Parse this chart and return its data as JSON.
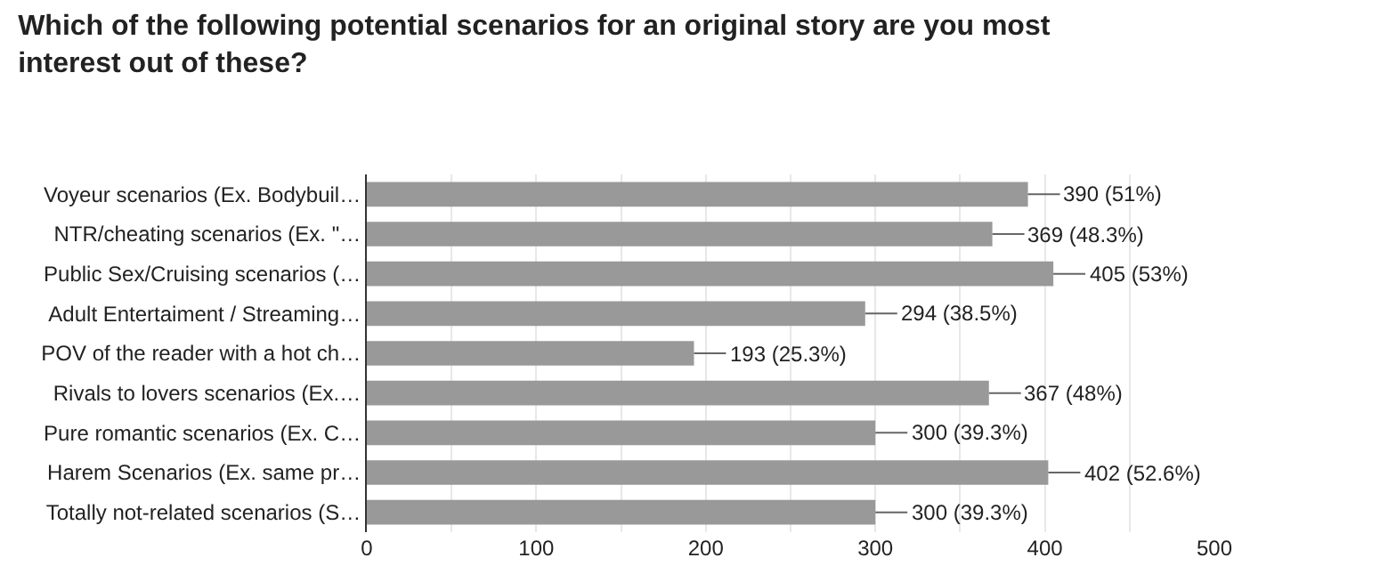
{
  "chart_data": {
    "type": "bar",
    "orientation": "horizontal",
    "title": "Which of the following potential scenarios for an original story are you most\ninterest out of these?",
    "categories": [
      "Voyeur scenarios (Ex. Bodybuil…",
      "NTR/cheating scenarios (Ex. \"…",
      "Public Sex/Cruising scenarios (…",
      "Adult Entertaiment / Streaming…",
      "POV of the reader with a hot ch…",
      "Rivals to lovers scenarios (Ex.…",
      "Pure romantic scenarios (Ex. C…",
      "Harem Scenarios (Ex. same pr…",
      "Totally not-related scenarios (S…"
    ],
    "values": [
      390,
      369,
      405,
      294,
      193,
      367,
      300,
      402,
      300
    ],
    "value_labels": [
      "390 (51%)",
      "369 (48.3%)",
      "405 (53%)",
      "294 (38.5%)",
      "193 (25.3%)",
      "367 (48%)",
      "300 (39.3%)",
      "402 (52.6%)",
      "300 (39.3%)"
    ],
    "color": "#999999",
    "xlim": [
      0,
      500
    ],
    "xticks": [
      0,
      {
        "value": 50,
        "label": null
      },
      100,
      {
        "value": 150,
        "label": null
      },
      200,
      {
        "value": 250,
        "label": null
      },
      300,
      {
        "value": 350,
        "label": null
      },
      400,
      {
        "value": 450,
        "label": null
      },
      500
    ],
    "grid": "x",
    "legend": false
  }
}
